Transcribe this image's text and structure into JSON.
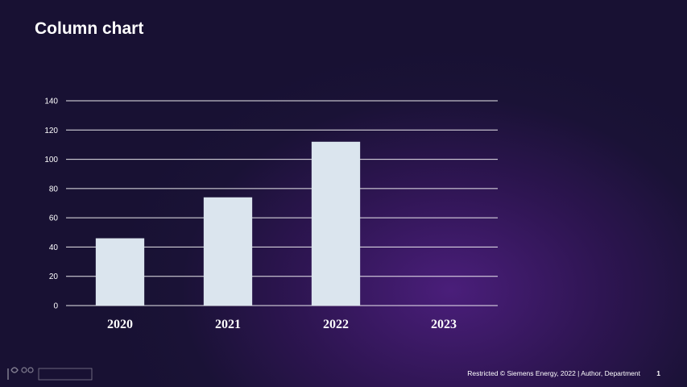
{
  "slide": {
    "title": "Column chart",
    "footer": "Restricted © Siemens Energy, 2022 | Author, Department",
    "page_number": "1"
  },
  "colors": {
    "bar": "#dbe5ee",
    "gridline": "#ffffff"
  },
  "chart_data": {
    "type": "bar",
    "categories": [
      "2020",
      "2021",
      "2022",
      "2023"
    ],
    "values": [
      46,
      74,
      112,
      null
    ],
    "title": "",
    "xlabel": "",
    "ylabel": "",
    "ylim": [
      0,
      140
    ],
    "yticks": [
      0,
      20,
      40,
      60,
      80,
      100,
      120,
      140
    ],
    "grid": true,
    "legend": "none"
  }
}
